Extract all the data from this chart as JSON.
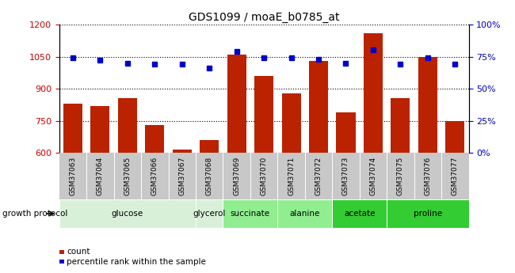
{
  "title": "GDS1099 / moaE_b0785_at",
  "categories": [
    "GSM37063",
    "GSM37064",
    "GSM37065",
    "GSM37066",
    "GSM37067",
    "GSM37068",
    "GSM37069",
    "GSM37070",
    "GSM37071",
    "GSM37072",
    "GSM37073",
    "GSM37074",
    "GSM37075",
    "GSM37076",
    "GSM37077"
  ],
  "counts": [
    830,
    820,
    855,
    730,
    615,
    660,
    1060,
    960,
    880,
    1030,
    790,
    1160,
    855,
    1050,
    750
  ],
  "percentiles": [
    74,
    72,
    70,
    69,
    69,
    66,
    79,
    74,
    74,
    73,
    70,
    80,
    69,
    74,
    69
  ],
  "ylim_left": [
    600,
    1200
  ],
  "ylim_right": [
    0,
    100
  ],
  "yticks_left": [
    600,
    750,
    900,
    1050,
    1200
  ],
  "yticks_right": [
    0,
    25,
    50,
    75,
    100
  ],
  "bar_color": "#bb2200",
  "dot_color": "#0000cc",
  "background_color": "#ffffff",
  "tick_label_color_left": "#cc0000",
  "tick_label_color_right": "#0000bb",
  "xlabel_row_color": "#c8c8c8",
  "groups": [
    {
      "label": "glucose",
      "start": 0,
      "end": 4,
      "color": "#d8f0d8"
    },
    {
      "label": "glycerol",
      "start": 5,
      "end": 5,
      "color": "#d8f0d8"
    },
    {
      "label": "succinate",
      "start": 6,
      "end": 7,
      "color": "#90ee90"
    },
    {
      "label": "alanine",
      "start": 8,
      "end": 9,
      "color": "#90ee90"
    },
    {
      "label": "acetate",
      "start": 10,
      "end": 11,
      "color": "#33cc33"
    },
    {
      "label": "proline",
      "start": 12,
      "end": 14,
      "color": "#33cc33"
    }
  ],
  "legend_items": [
    "count",
    "percentile rank within the sample"
  ],
  "growth_protocol_label": "growth protocol"
}
